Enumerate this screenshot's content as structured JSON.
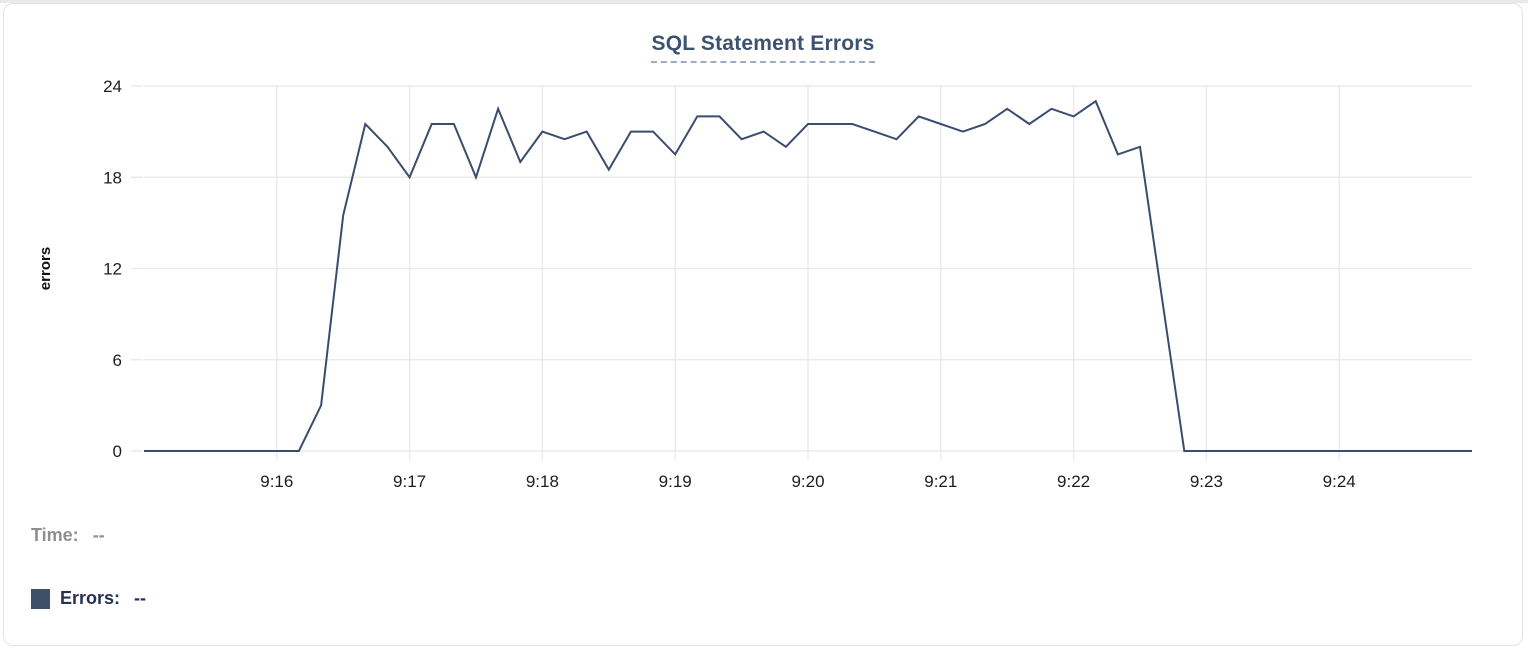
{
  "header": {
    "title": "SQL Statement Errors"
  },
  "tooltip_readout": {
    "time_label": "Time:",
    "time_value": "--",
    "errors_label": "Errors:",
    "errors_value": "--"
  },
  "colors": {
    "series_line": "#3b4d6e",
    "legend_swatch": "#3e4f68",
    "title_text": "#3d5170",
    "title_underline": "#9dabc6",
    "muted_gray_text": "#8e8e93",
    "legend_navy_text": "#263156",
    "axis_tick_text": "#1d1d1f",
    "gridline": "#e8e8ea",
    "card_border": "#e3e3e7",
    "card_background": "#ffffff"
  },
  "chart_data": {
    "type": "line",
    "title": "SQL Statement Errors",
    "xlabel": "",
    "ylabel": "errors",
    "ylim": [
      0,
      24
    ],
    "yticks": [
      0,
      6,
      12,
      18,
      24
    ],
    "grid": true,
    "legend_position": "bottom-left",
    "interval_seconds": 10,
    "x_tick_labels": [
      "9:16",
      "9:17",
      "9:18",
      "9:19",
      "9:20",
      "9:21",
      "9:22",
      "9:23",
      "9:24"
    ],
    "x_tick_indices": [
      6,
      12,
      18,
      24,
      30,
      36,
      42,
      48,
      54
    ],
    "times": [
      "9:15:00",
      "9:15:10",
      "9:15:20",
      "9:15:30",
      "9:15:40",
      "9:15:50",
      "9:16:00",
      "9:16:10",
      "9:16:20",
      "9:16:30",
      "9:16:40",
      "9:16:50",
      "9:17:00",
      "9:17:10",
      "9:17:20",
      "9:17:30",
      "9:17:40",
      "9:17:50",
      "9:18:00",
      "9:18:10",
      "9:18:20",
      "9:18:30",
      "9:18:40",
      "9:18:50",
      "9:19:00",
      "9:19:10",
      "9:19:20",
      "9:19:30",
      "9:19:40",
      "9:19:50",
      "9:20:00",
      "9:20:10",
      "9:20:20",
      "9:20:30",
      "9:20:40",
      "9:20:50",
      "9:21:00",
      "9:21:10",
      "9:21:20",
      "9:21:30",
      "9:21:40",
      "9:21:50",
      "9:22:00",
      "9:22:10",
      "9:22:20",
      "9:22:30",
      "9:22:40",
      "9:22:50",
      "9:23:00",
      "9:23:10",
      "9:23:20",
      "9:23:30",
      "9:23:40",
      "9:23:50",
      "9:24:00",
      "9:24:10",
      "9:24:20",
      "9:24:30",
      "9:24:40",
      "9:24:50",
      "9:25:00"
    ],
    "series": [
      {
        "name": "Errors",
        "color": "#3b4d6e",
        "values": [
          0,
          0,
          0,
          0,
          0,
          0,
          0,
          0,
          3,
          15.5,
          21.5,
          20,
          18,
          21.5,
          21.5,
          18,
          22.5,
          19,
          21,
          20.5,
          21,
          18.5,
          21,
          21,
          19.5,
          22,
          22,
          20.5,
          21,
          20,
          21.5,
          21.5,
          21.5,
          21,
          20.5,
          22,
          21.5,
          21,
          21.5,
          22.5,
          21.5,
          22.5,
          22,
          23,
          19.5,
          20,
          10,
          0,
          0,
          0,
          0,
          0,
          0,
          0,
          0,
          0,
          0,
          0,
          0,
          0,
          0
        ]
      }
    ]
  }
}
